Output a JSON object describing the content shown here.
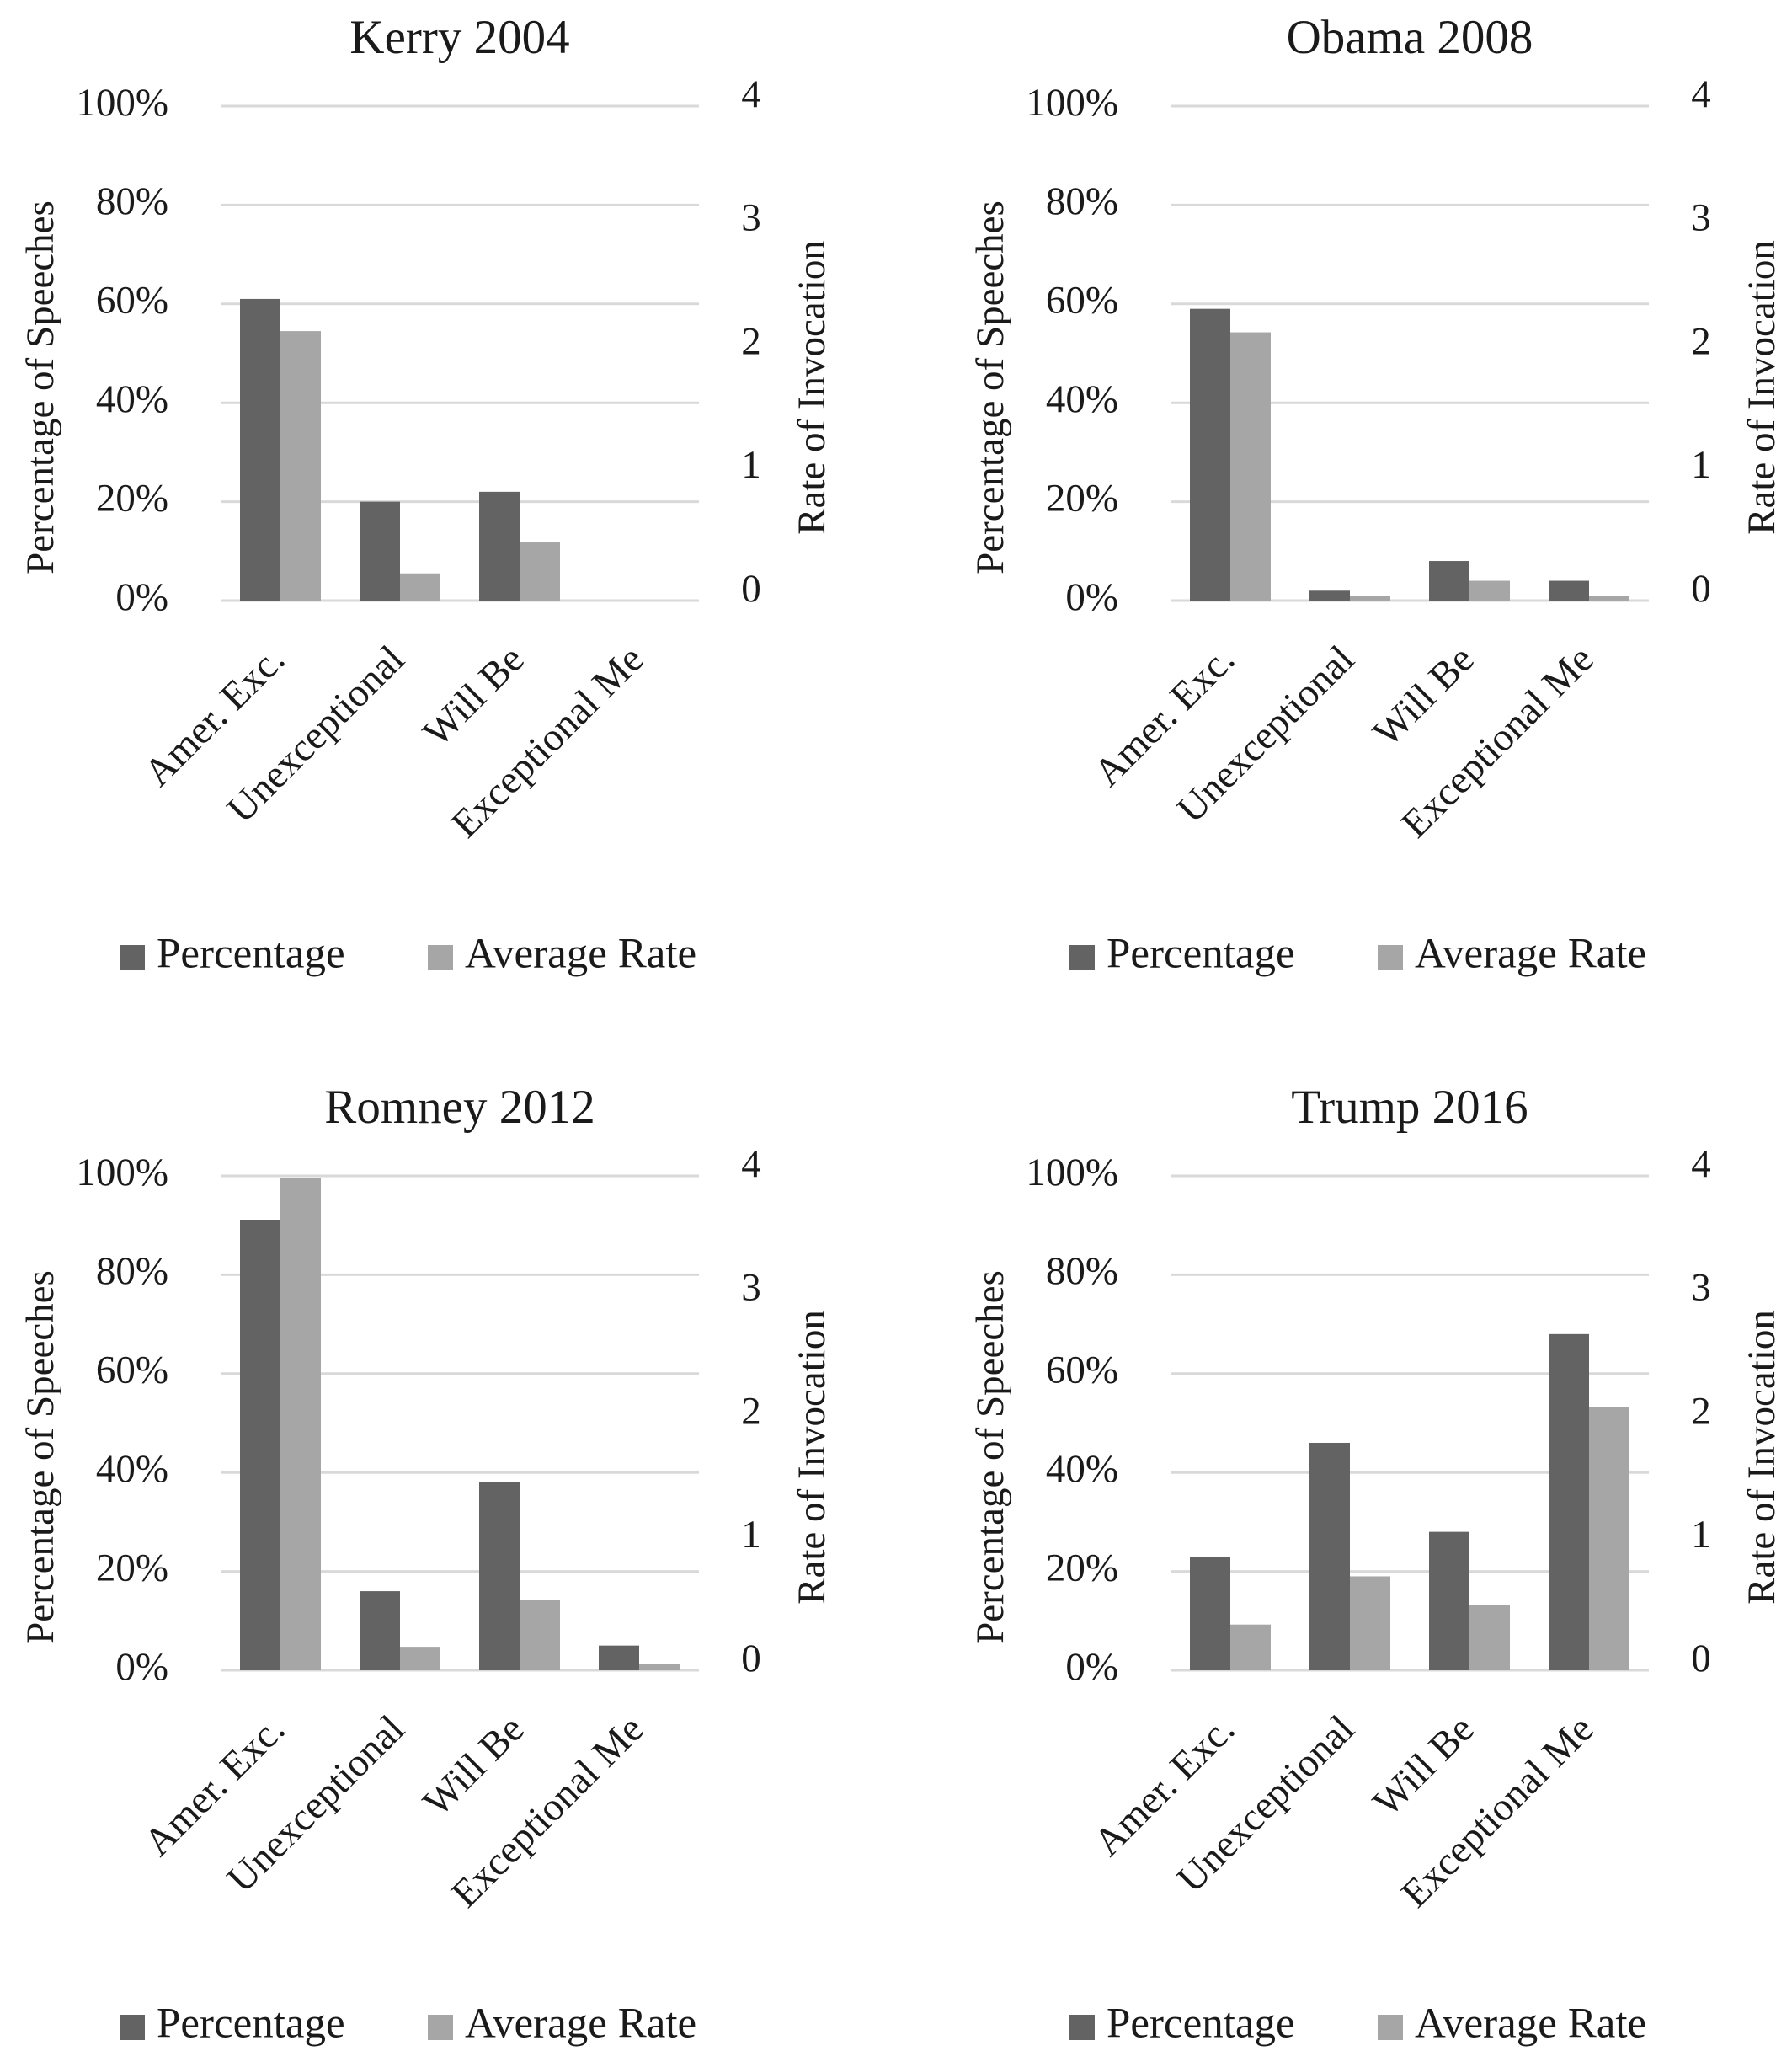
{
  "colors": {
    "percentage": "#636363",
    "average_rate": "#a6a6a6",
    "gridline": "#d9d9d9",
    "text": "#1a1a1a"
  },
  "chart_data": [
    {
      "type": "bar",
      "title": "Kerry 2004",
      "categories": [
        "Amer. Exc.",
        "Unexceptional",
        "Will Be",
        "Exceptional Me"
      ],
      "series": [
        {
          "name": "Percentage",
          "axis": "left",
          "values": [
            61,
            20,
            22,
            0
          ]
        },
        {
          "name": "Average Rate",
          "axis": "right",
          "values": [
            2.18,
            0.22,
            0.47,
            0
          ]
        }
      ],
      "ylabel": "Percentage of Speeches",
      "ylabel_right": "Rate of Invocation",
      "ylim": [
        0,
        100
      ],
      "ylim_right": [
        0,
        4
      ],
      "yticks": [
        "0%",
        "20%",
        "40%",
        "60%",
        "80%",
        "100%"
      ],
      "yticks_right": [
        "0",
        "1",
        "2",
        "3",
        "4"
      ],
      "grid": true,
      "legend_position": "bottom"
    },
    {
      "type": "bar",
      "title": "Obama 2008",
      "categories": [
        "Amer. Exc.",
        "Unexceptional",
        "Will Be",
        "Exceptional Me"
      ],
      "series": [
        {
          "name": "Percentage",
          "axis": "left",
          "values": [
            59,
            2,
            8,
            4
          ]
        },
        {
          "name": "Average Rate",
          "axis": "right",
          "values": [
            2.17,
            0.04,
            0.16,
            0.04
          ]
        }
      ],
      "ylabel": "Percentage of Speeches",
      "ylabel_right": "Rate of Invocation",
      "ylim": [
        0,
        100
      ],
      "ylim_right": [
        0,
        4
      ],
      "yticks": [
        "0%",
        "20%",
        "40%",
        "60%",
        "80%",
        "100%"
      ],
      "yticks_right": [
        "0",
        "1",
        "2",
        "3",
        "4"
      ],
      "grid": true,
      "legend_position": "bottom"
    },
    {
      "type": "bar",
      "title": "Romney 2012",
      "categories": [
        "Amer. Exc.",
        "Unexceptional",
        "Will Be",
        "Exceptional Me"
      ],
      "series": [
        {
          "name": "Percentage",
          "axis": "left",
          "values": [
            91,
            16,
            38,
            5
          ]
        },
        {
          "name": "Average Rate",
          "axis": "right",
          "values": [
            3.98,
            0.19,
            0.57,
            0.05
          ]
        }
      ],
      "ylabel": "Percentage of Speeches",
      "ylabel_right": "Rate of Invocation",
      "ylim": [
        0,
        100
      ],
      "ylim_right": [
        0,
        4
      ],
      "yticks": [
        "0%",
        "20%",
        "40%",
        "60%",
        "80%",
        "100%"
      ],
      "yticks_right": [
        "0",
        "1",
        "2",
        "3",
        "4"
      ],
      "grid": true,
      "legend_position": "bottom"
    },
    {
      "type": "bar",
      "title": "Trump 2016",
      "categories": [
        "Amer. Exc.",
        "Unexceptional",
        "Will Be",
        "Exceptional Me"
      ],
      "series": [
        {
          "name": "Percentage",
          "axis": "left",
          "values": [
            23,
            46,
            28,
            68
          ]
        },
        {
          "name": "Average Rate",
          "axis": "right",
          "values": [
            0.37,
            0.76,
            0.53,
            2.13
          ]
        }
      ],
      "ylabel": "Percentage of Speeches",
      "ylabel_right": "Rate of Invocation",
      "ylim": [
        0,
        100
      ],
      "ylim_right": [
        0,
        4
      ],
      "yticks": [
        "0%",
        "20%",
        "40%",
        "60%",
        "80%",
        "100%"
      ],
      "yticks_right": [
        "0",
        "1",
        "2",
        "3",
        "4"
      ],
      "grid": true,
      "legend_position": "bottom"
    }
  ]
}
